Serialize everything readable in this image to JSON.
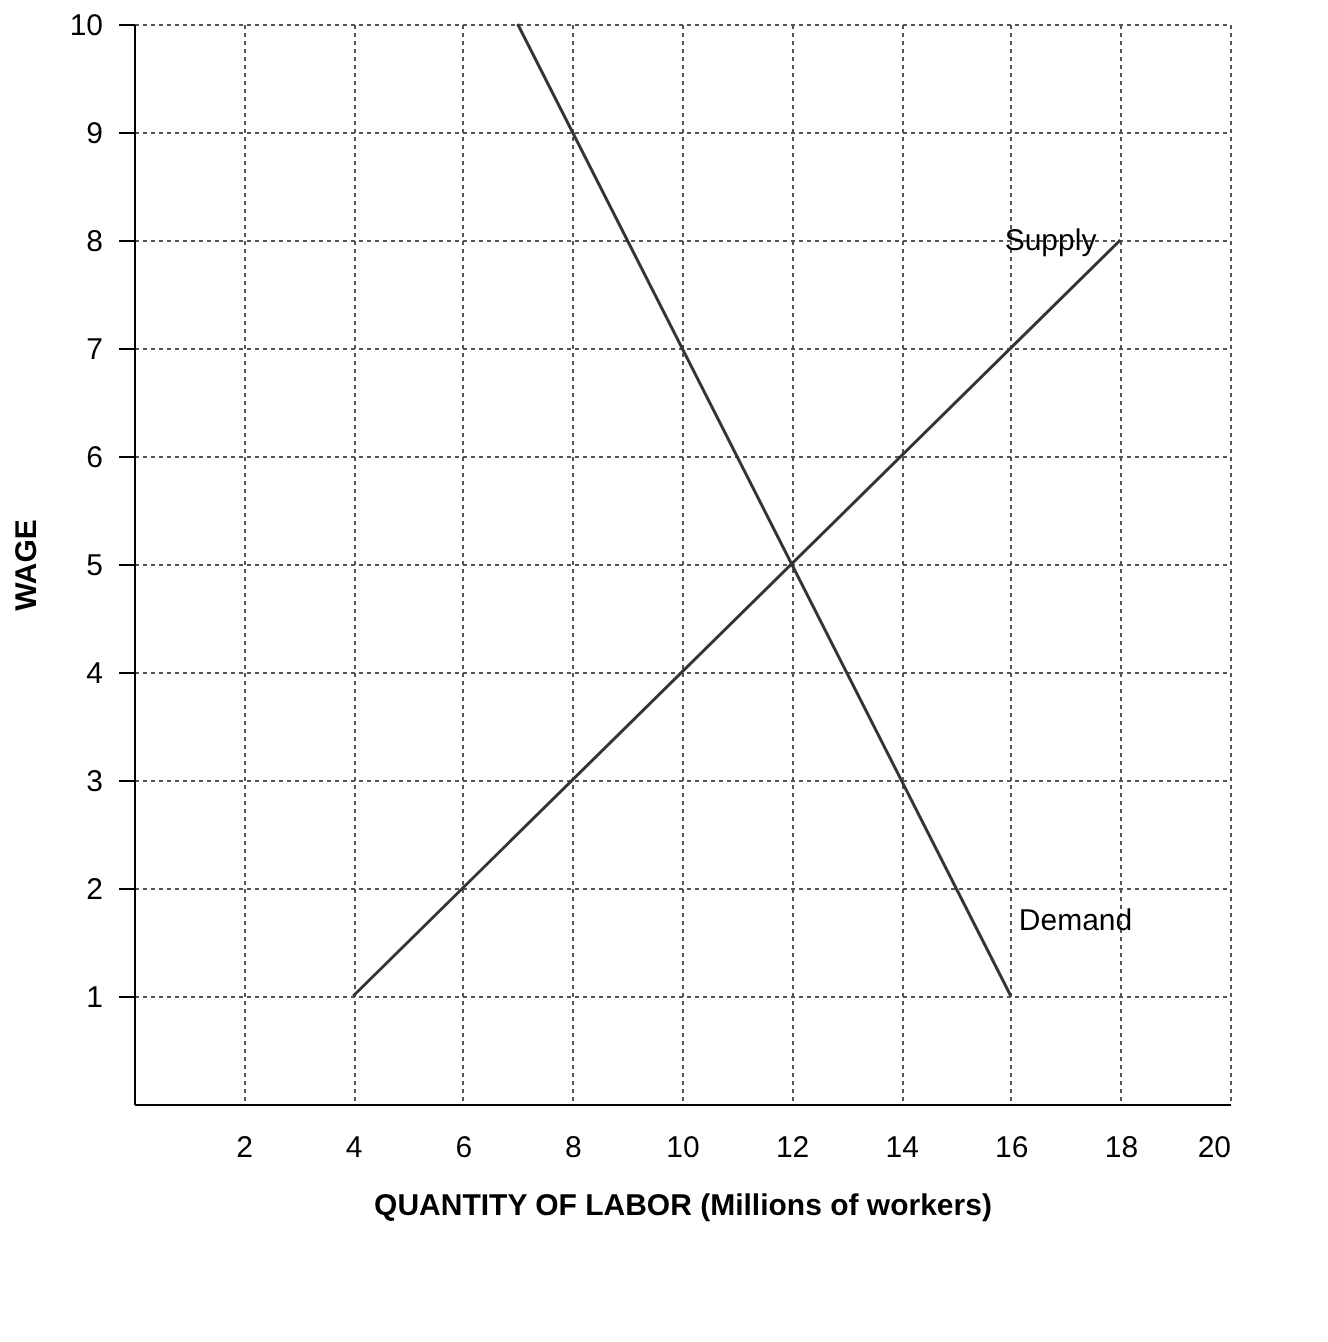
{
  "chart_data": {
    "type": "line",
    "xlabel": "QUANTITY OF LABOR (Millions of workers)",
    "ylabel": "WAGE",
    "xlim": [
      0,
      20
    ],
    "xticks": [
      2,
      4,
      6,
      8,
      10,
      12,
      14,
      16,
      18,
      20
    ],
    "ylim": [
      0,
      10
    ],
    "yticks": [
      1,
      2,
      3,
      4,
      5,
      6,
      7,
      8,
      9,
      10
    ],
    "grid": true,
    "line_style": "solid",
    "marker": "none",
    "series": [
      {
        "name": "Supply",
        "color": "#333333",
        "x": [
          4,
          18
        ],
        "values": [
          1,
          8
        ]
      },
      {
        "name": "Demand",
        "color": "#333333",
        "x": [
          7,
          16
        ],
        "values": [
          10,
          1
        ]
      }
    ]
  }
}
